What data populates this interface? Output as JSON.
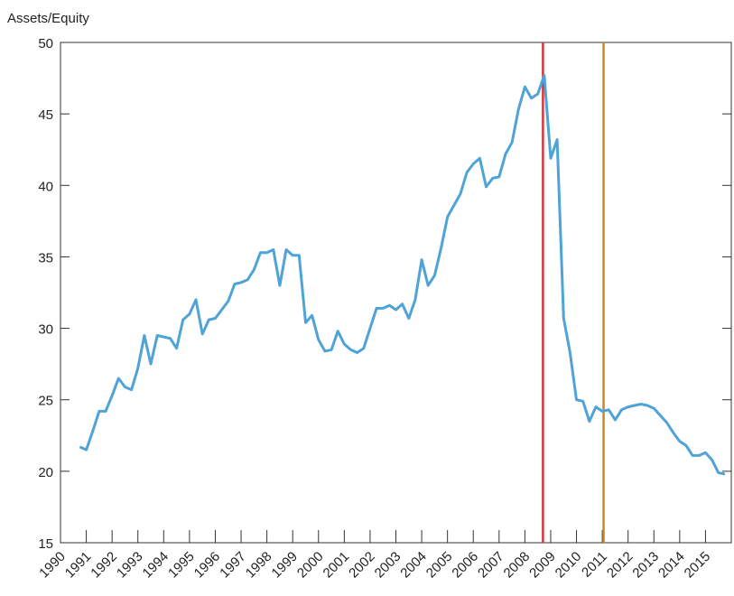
{
  "chart_data": {
    "type": "line",
    "y_label": "Assets/Equity",
    "x": [
      1990.75,
      1991.0,
      1991.25,
      1991.5,
      1991.75,
      1992.0,
      1992.25,
      1992.5,
      1992.75,
      1993.0,
      1993.25,
      1993.5,
      1993.75,
      1994.0,
      1994.25,
      1994.5,
      1994.75,
      1995.0,
      1995.25,
      1995.5,
      1995.75,
      1996.0,
      1996.25,
      1996.5,
      1996.75,
      1997.0,
      1997.25,
      1997.5,
      1997.75,
      1998.0,
      1998.25,
      1998.5,
      1998.75,
      1999.0,
      1999.25,
      1999.5,
      1999.75,
      2000.0,
      2000.25,
      2000.5,
      2000.75,
      2001.0,
      2001.25,
      2001.5,
      2001.75,
      2002.0,
      2002.25,
      2002.5,
      2002.75,
      2003.0,
      2003.25,
      2003.5,
      2003.75,
      2004.0,
      2004.25,
      2004.5,
      2004.75,
      2005.0,
      2005.25,
      2005.5,
      2005.75,
      2006.0,
      2006.25,
      2006.5,
      2006.75,
      2007.0,
      2007.25,
      2007.5,
      2007.75,
      2008.0,
      2008.25,
      2008.5,
      2008.75,
      2009.0,
      2009.25,
      2009.5,
      2009.75,
      2010.0,
      2010.25,
      2010.5,
      2010.75,
      2011.0,
      2011.25,
      2011.5,
      2011.75,
      2012.0,
      2012.25,
      2012.5,
      2012.75,
      2013.0,
      2013.25,
      2013.5,
      2013.75,
      2014.0,
      2014.25,
      2014.5,
      2014.75,
      2015.0,
      2015.25,
      2015.5,
      2015.75
    ],
    "series": [
      {
        "color": "#4fa3d6",
        "values": [
          21.7,
          21.5,
          22.8,
          24.2,
          24.2,
          25.3,
          26.5,
          25.9,
          25.7,
          27.2,
          29.5,
          27.5,
          29.5,
          29.4,
          29.3,
          28.6,
          30.6,
          31.0,
          32.0,
          29.6,
          30.6,
          30.7,
          31.3,
          31.9,
          33.1,
          33.2,
          33.4,
          34.1,
          35.3,
          35.3,
          35.5,
          33.0,
          35.5,
          35.1,
          35.1,
          30.4,
          30.9,
          29.2,
          28.4,
          28.5,
          29.8,
          28.9,
          28.5,
          28.3,
          28.6,
          30.0,
          31.4,
          31.4,
          31.6,
          31.3,
          31.7,
          30.7,
          32.0,
          34.8,
          33.0,
          33.7,
          35.6,
          37.8,
          38.6,
          39.4,
          40.9,
          41.5,
          41.9,
          39.9,
          40.5,
          40.6,
          42.2,
          43.0,
          45.3,
          46.9,
          46.1,
          46.4,
          47.7,
          41.9,
          43.2,
          30.7,
          28.3,
          25.0,
          24.9,
          23.5,
          24.5,
          24.2,
          24.3,
          23.6,
          24.3,
          24.5,
          24.6,
          24.7,
          24.6,
          24.4,
          23.9,
          23.4,
          22.7,
          22.1,
          21.8,
          21.1,
          21.1,
          21.3,
          20.8,
          19.9,
          19.8
        ]
      }
    ],
    "vlines": [
      {
        "x": 2008.7,
        "color": "#d9343b"
      },
      {
        "x": 2011.05,
        "color": "#c98a1a"
      }
    ],
    "xlim": [
      1990,
      2016
    ],
    "xticks": [
      1990,
      1991,
      1992,
      1993,
      1994,
      1995,
      1996,
      1997,
      1998,
      1999,
      2000,
      2001,
      2002,
      2003,
      2004,
      2005,
      2006,
      2007,
      2008,
      2009,
      2010,
      2011,
      2012,
      2013,
      2014,
      2015
    ],
    "ylim": [
      15,
      50
    ],
    "yticks": [
      15,
      20,
      25,
      30,
      35,
      40,
      45,
      50
    ]
  }
}
